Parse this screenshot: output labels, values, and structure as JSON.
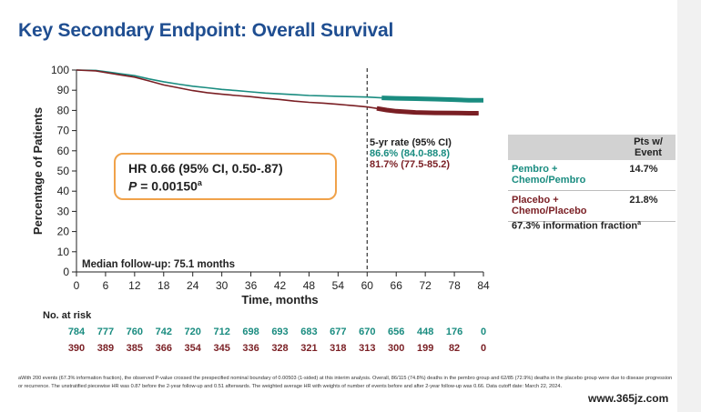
{
  "slide_title": "Key Secondary Endpoint: Overall Survival",
  "hr_box": {
    "line1": "HR 0.66 (95% CI, 0.50-.87)",
    "p_label": "P",
    "p_value": " = 0.00150",
    "p_sup": "a"
  },
  "median_followup": "Median follow-up: 75.1 months",
  "five_year": {
    "header": "5-yr rate (95% CI)",
    "pembro": "86.6% (84.0-88.8)",
    "placebo": "81.7% (77.5-85.2)"
  },
  "event_table": {
    "header": [
      "Pts w/",
      "Event"
    ],
    "rows": [
      {
        "arm": [
          "Pembro +",
          "Chemo/Pembro"
        ],
        "pct": "14.7%"
      },
      {
        "arm": [
          "Placebo +",
          "Chemo/Placebo"
        ],
        "pct": "21.8%"
      }
    ]
  },
  "info_fraction": {
    "text": "67.3% information fraction",
    "sup": "a"
  },
  "footnote": "aWith 200 events (67.3% information fraction), the observed P-value crossed the prespecified nominal boundary of 0.00503 (1-sided) at this interim analysis. Overall, 86/115 (74.8%) deaths in the pembro group and 62/85 (72.9%) deaths in the placebo group were due to disease progression or recurrence. The unstratified piecewise HR was 0.87 before the 2-year follow-up and 0.51 afterwards. The weighted average HR with weights of number of events before and after 2-year follow-up was 0.66. Data cutoff date: March 22, 2024.",
  "watermark": "www.365jz.com",
  "colors": {
    "pembro": "#1a8c80",
    "placebo": "#7a1f24",
    "title": "#1f4e91",
    "box_border": "#f0a24a"
  },
  "chart_data": {
    "type": "line",
    "title": "",
    "xlabel": "Time, months",
    "ylabel": "Percentage of Patients",
    "xlim": [
      0,
      84
    ],
    "ylim": [
      0,
      100
    ],
    "xticks": [
      0,
      6,
      12,
      18,
      24,
      30,
      36,
      42,
      48,
      54,
      60,
      66,
      72,
      78,
      84
    ],
    "yticks": [
      0,
      10,
      20,
      30,
      40,
      50,
      60,
      70,
      80,
      90,
      100
    ],
    "reference_line_x": 60,
    "series": [
      {
        "name": "Pembro + Chemo/Pembro",
        "color": "#1a8c80",
        "points": [
          [
            0,
            100
          ],
          [
            4,
            99.8
          ],
          [
            6,
            99.2
          ],
          [
            9,
            98.2
          ],
          [
            12,
            97.2
          ],
          [
            15,
            95.6
          ],
          [
            18,
            94.2
          ],
          [
            21,
            93.0
          ],
          [
            24,
            92.0
          ],
          [
            27,
            91.2
          ],
          [
            30,
            90.4
          ],
          [
            33,
            89.8
          ],
          [
            36,
            89.2
          ],
          [
            39,
            88.6
          ],
          [
            42,
            88.2
          ],
          [
            45,
            87.8
          ],
          [
            48,
            87.4
          ],
          [
            51,
            87.2
          ],
          [
            54,
            87.0
          ],
          [
            57,
            86.8
          ],
          [
            60,
            86.6
          ],
          [
            63,
            86.2
          ],
          [
            66,
            86.0
          ],
          [
            70,
            85.8
          ],
          [
            74,
            85.6
          ],
          [
            78,
            85.3
          ],
          [
            81,
            85.0
          ],
          [
            84,
            85.0
          ]
        ]
      },
      {
        "name": "Placebo + Chemo/Placebo",
        "color": "#7a1f24",
        "points": [
          [
            0,
            100
          ],
          [
            4,
            99.6
          ],
          [
            6,
            98.8
          ],
          [
            9,
            97.6
          ],
          [
            12,
            96.5
          ],
          [
            15,
            94.6
          ],
          [
            18,
            92.6
          ],
          [
            21,
            91.2
          ],
          [
            24,
            89.8
          ],
          [
            27,
            88.8
          ],
          [
            30,
            88.0
          ],
          [
            33,
            87.4
          ],
          [
            36,
            86.8
          ],
          [
            39,
            86.0
          ],
          [
            42,
            85.4
          ],
          [
            45,
            84.6
          ],
          [
            48,
            84.0
          ],
          [
            51,
            83.6
          ],
          [
            54,
            83.0
          ],
          [
            57,
            82.4
          ],
          [
            60,
            81.7
          ],
          [
            62,
            81.0
          ],
          [
            64,
            80.2
          ],
          [
            66,
            79.6
          ],
          [
            70,
            79.0
          ],
          [
            74,
            78.8
          ],
          [
            78,
            78.7
          ],
          [
            81,
            78.6
          ],
          [
            83,
            78.6
          ]
        ]
      }
    ],
    "at_risk": {
      "label": "No. at risk",
      "times": [
        0,
        6,
        12,
        18,
        24,
        30,
        36,
        42,
        48,
        54,
        60,
        66,
        72,
        78,
        84
      ],
      "pembro": [
        784,
        777,
        760,
        742,
        720,
        712,
        698,
        693,
        683,
        677,
        670,
        656,
        448,
        176,
        0
      ],
      "placebo": [
        390,
        389,
        385,
        366,
        354,
        345,
        336,
        328,
        321,
        318,
        313,
        300,
        199,
        82,
        0
      ]
    }
  }
}
